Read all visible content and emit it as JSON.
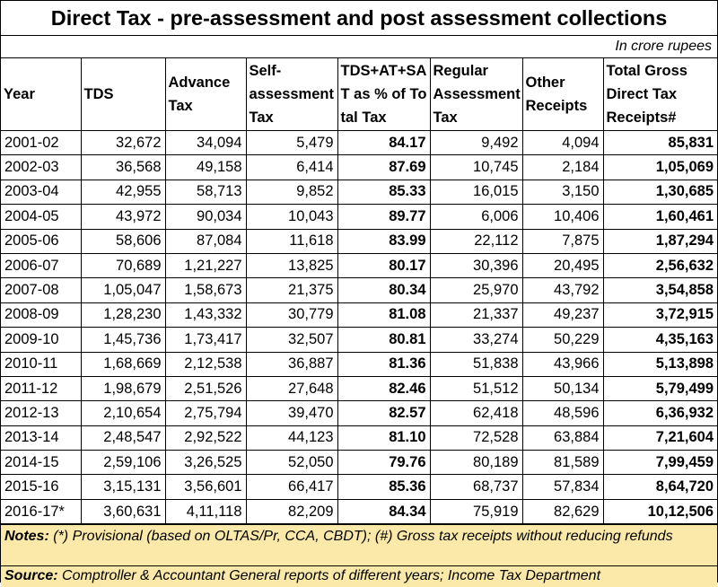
{
  "title": "Direct Tax - pre-assessment and post assessment collections",
  "units": "In crore rupees",
  "headers": [
    "Year",
    "TDS",
    "Advance Tax",
    "Self-assessment Tax",
    "TDS+AT+SAT as % of Total Tax",
    "Regular Assessment Tax",
    "Other Receipts",
    "Total Gross Direct Tax Receipts#"
  ],
  "rows": [
    [
      "2001-02",
      "32,672",
      "34,094",
      "5,479",
      "84.17",
      "9,492",
      "4,094",
      "85,831"
    ],
    [
      "2002-03",
      "36,568",
      "49,158",
      "6,414",
      "87.69",
      "10,745",
      "2,184",
      "1,05,069"
    ],
    [
      "2003-04",
      "42,955",
      "58,713",
      "9,852",
      "85.33",
      "16,015",
      "3,150",
      "1,30,685"
    ],
    [
      "2004-05",
      "43,972",
      "90,034",
      "10,043",
      "89.77",
      "6,006",
      "10,406",
      "1,60,461"
    ],
    [
      "2005-06",
      "58,606",
      "87,084",
      "11,618",
      "83.99",
      "22,112",
      "7,875",
      "1,87,294"
    ],
    [
      "2006-07",
      "70,689",
      "1,21,227",
      "13,825",
      "80.17",
      "30,396",
      "20,495",
      "2,56,632"
    ],
    [
      "2007-08",
      "1,05,047",
      "1,58,673",
      "21,375",
      "80.34",
      "25,970",
      "43,792",
      "3,54,858"
    ],
    [
      "2008-09",
      "1,28,230",
      "1,43,332",
      "30,779",
      "81.08",
      "21,337",
      "49,237",
      "3,72,915"
    ],
    [
      "2009-10",
      "1,45,736",
      "1,73,417",
      "32,507",
      "80.81",
      "33,274",
      "50,229",
      "4,35,163"
    ],
    [
      "2010-11",
      "1,68,669",
      "2,12,538",
      "36,887",
      "81.36",
      "51,838",
      "43,966",
      "5,13,898"
    ],
    [
      "2011-12",
      "1,98,679",
      "2,51,526",
      "27,648",
      "82.46",
      "51,512",
      "50,134",
      "5,79,499"
    ],
    [
      "2012-13",
      "2,10,654",
      "2,75,794",
      "39,470",
      "82.57",
      "62,418",
      "48,596",
      "6,36,932"
    ],
    [
      "2013-14",
      "2,48,547",
      "2,92,522",
      "44,123",
      "81.10",
      "72,528",
      "63,884",
      "7,21,604"
    ],
    [
      "2014-15",
      "2,59,106",
      "3,26,525",
      "52,050",
      "79.76",
      "80,189",
      "81,589",
      "7,99,459"
    ],
    [
      "2015-16",
      "3,15,131",
      "3,56,601",
      "66,417",
      "85.36",
      "68,737",
      "57,834",
      "8,64,720"
    ],
    [
      "2016-17*",
      "3,60,631",
      "4,11,118",
      "82,209",
      "84.34",
      "75,919",
      "82,629",
      "10,12,506"
    ]
  ],
  "notes": {
    "label": "Notes:",
    "text": "(*) Provisional (based on OLTAS/Pr, CCA, CBDT); (#) Gross tax receipts without reducing refunds"
  },
  "source": {
    "label": "Source:",
    "text": "Comptroller & Accountant General reports of different years; Income Tax Department"
  },
  "colors": {
    "notes_background": "#fbe9a9",
    "border": "#000000"
  }
}
